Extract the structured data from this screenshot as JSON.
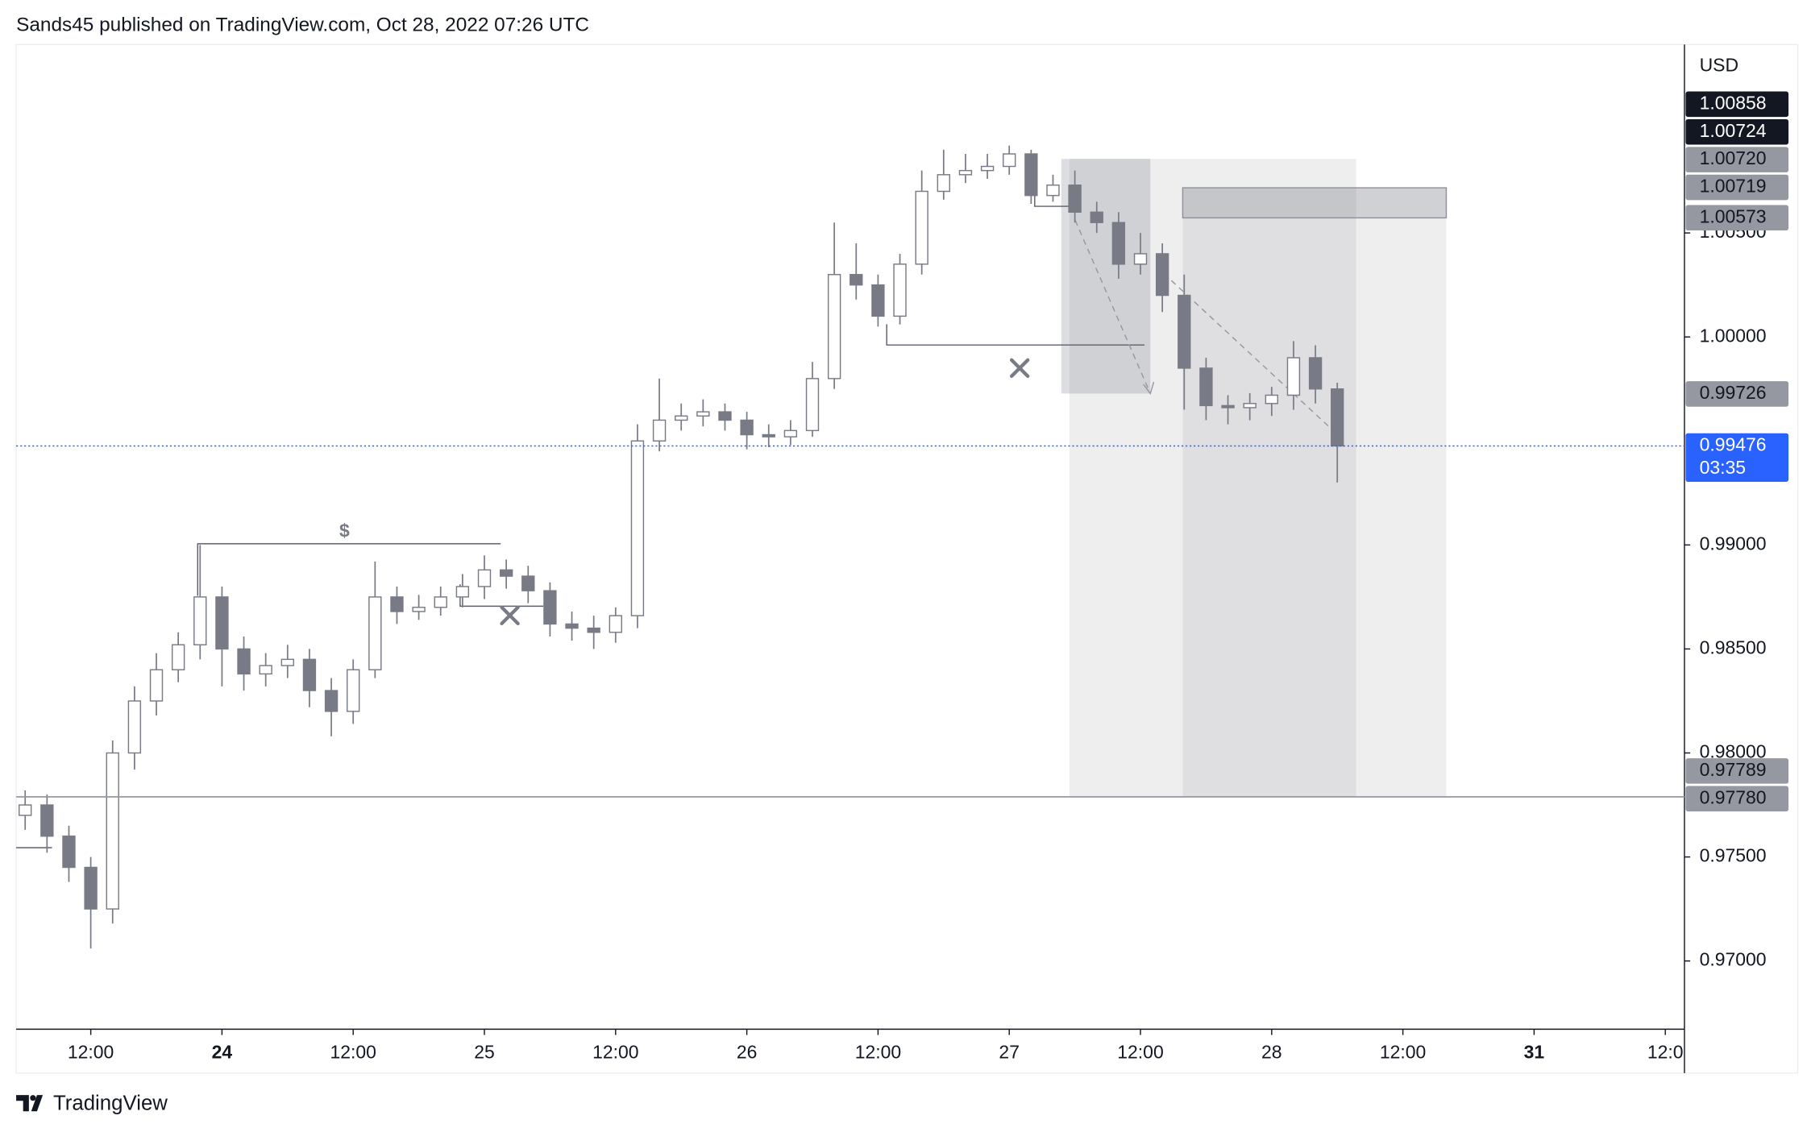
{
  "header": "Sands45 published on TradingView.com, Oct 28, 2022 07:26 UTC",
  "footer": "TradingView",
  "chart_data": {
    "type": "candlestick",
    "y_axis_label": "USD",
    "annotations": [
      "$"
    ],
    "up_color": "#ffffff",
    "down_color": "#787b86",
    "x": [
      -18,
      -16,
      -14,
      -12,
      -10,
      -8,
      -6,
      -4,
      -2,
      0,
      2,
      4,
      6,
      8,
      10,
      12,
      14,
      16,
      18,
      20,
      22,
      24,
      26,
      28,
      30,
      32,
      34,
      36,
      38,
      40,
      42,
      44,
      46,
      48,
      50,
      52,
      54,
      56,
      58,
      60,
      62,
      64,
      66,
      68,
      70,
      72,
      74,
      76,
      78,
      80,
      82,
      84,
      86,
      88,
      90,
      92,
      94,
      96,
      98,
      100,
      102
    ],
    "open": [
      0.977,
      0.9775,
      0.976,
      0.9745,
      0.9725,
      0.98,
      0.9825,
      0.984,
      0.9852,
      0.9875,
      0.985,
      0.9838,
      0.9842,
      0.9845,
      0.983,
      0.982,
      0.984,
      0.9875,
      0.9868,
      0.987,
      0.9875,
      0.988,
      0.9888,
      0.9885,
      0.9878,
      0.9862,
      0.986,
      0.9858,
      0.9866,
      0.995,
      0.996,
      0.9962,
      0.9964,
      0.996,
      0.9953,
      0.9952,
      0.9955,
      0.998,
      1.003,
      1.0025,
      1.001,
      1.0035,
      1.007,
      1.0078,
      1.008,
      1.0082,
      1.0088,
      1.0068,
      1.0073,
      1.006,
      1.0055,
      1.0035,
      1.004,
      1.002,
      0.9985,
      0.9967,
      0.9966,
      0.9968,
      0.9972,
      0.999,
      0.9975
    ],
    "high": [
      0.9782,
      0.978,
      0.9765,
      0.975,
      0.9806,
      0.9832,
      0.9848,
      0.9858,
      0.99,
      0.988,
      0.9856,
      0.9848,
      0.9852,
      0.985,
      0.9836,
      0.9845,
      0.9892,
      0.988,
      0.9876,
      0.988,
      0.9886,
      0.9895,
      0.9893,
      0.989,
      0.9882,
      0.9868,
      0.9866,
      0.987,
      0.9958,
      0.998,
      0.9968,
      0.997,
      0.9968,
      0.9964,
      0.9958,
      0.996,
      0.9988,
      1.0055,
      1.0045,
      1.003,
      1.004,
      1.008,
      1.009,
      1.0088,
      1.0088,
      1.0092,
      1.009,
      1.0078,
      1.008,
      1.0065,
      1.006,
      1.005,
      1.0045,
      1.003,
      0.999,
      0.9972,
      0.9973,
      0.9976,
      0.9998,
      0.9996,
      0.9978
    ],
    "low": [
      0.9763,
      0.9752,
      0.9738,
      0.9706,
      0.9718,
      0.9792,
      0.9818,
      0.9834,
      0.9845,
      0.9832,
      0.983,
      0.9832,
      0.9836,
      0.9822,
      0.9808,
      0.9814,
      0.9836,
      0.9862,
      0.9864,
      0.9866,
      0.987,
      0.9874,
      0.9879,
      0.9872,
      0.9856,
      0.9854,
      0.985,
      0.9853,
      0.986,
      0.9945,
      0.9955,
      0.9957,
      0.9955,
      0.9946,
      0.9947,
      0.9948,
      0.9952,
      0.9975,
      1.0018,
      1.0005,
      1.0006,
      1.003,
      1.0066,
      1.0074,
      1.0076,
      1.0078,
      1.0064,
      1.0065,
      1.0055,
      1.005,
      1.0028,
      1.003,
      1.0012,
      0.9965,
      0.996,
      0.9958,
      0.996,
      0.9962,
      0.9965,
      0.9968,
      0.993
    ],
    "close": [
      0.9775,
      0.976,
      0.9745,
      0.9725,
      0.98,
      0.9825,
      0.984,
      0.9852,
      0.9875,
      0.985,
      0.9838,
      0.9842,
      0.9845,
      0.983,
      0.982,
      0.984,
      0.9875,
      0.9868,
      0.987,
      0.9875,
      0.988,
      0.9888,
      0.9885,
      0.9878,
      0.9862,
      0.986,
      0.9858,
      0.9866,
      0.995,
      0.996,
      0.9962,
      0.9964,
      0.996,
      0.9953,
      0.9952,
      0.9955,
      0.998,
      1.003,
      1.0025,
      1.001,
      1.0035,
      1.007,
      1.0078,
      1.008,
      1.0082,
      1.0088,
      1.0068,
      1.0073,
      1.006,
      1.0055,
      1.0035,
      1.004,
      1.002,
      0.9985,
      0.9967,
      0.9966,
      0.9968,
      0.9972,
      0.999,
      0.9975,
      0.99476
    ],
    "xlim": [
      -18.82,
      133.75
    ],
    "ylim": [
      0.96672,
      1.01406
    ],
    "xticks": [
      {
        "value": -12,
        "label": "12:00"
      },
      {
        "value": 0,
        "label": "24",
        "bold": true
      },
      {
        "value": 12,
        "label": "12:00"
      },
      {
        "value": 24,
        "label": "25"
      },
      {
        "value": 36,
        "label": "12:00"
      },
      {
        "value": 48,
        "label": "26"
      },
      {
        "value": 60,
        "label": "12:00"
      },
      {
        "value": 72,
        "label": "27"
      },
      {
        "value": 84,
        "label": "12:00"
      },
      {
        "value": 96,
        "label": "28"
      },
      {
        "value": 108,
        "label": "12:00"
      },
      {
        "value": 120,
        "label": "31",
        "bold": true
      },
      {
        "value": 132,
        "label": "12:0"
      }
    ],
    "yticks": [
      {
        "value": 0.97,
        "label": "0.97000"
      },
      {
        "value": 0.975,
        "label": "0.97500"
      },
      {
        "value": 0.98,
        "label": "0.98000"
      },
      {
        "value": 0.985,
        "label": "0.98500"
      },
      {
        "value": 0.99,
        "label": "0.99000"
      },
      {
        "value": 1,
        "label": "1.00000"
      },
      {
        "value": 1.005,
        "label": "1.00500"
      }
    ],
    "price_labels": [
      {
        "value": 1.00858,
        "label": "1.00858",
        "color": "#131722"
      },
      {
        "value": 1.00724,
        "label": "1.00724",
        "color": "#131722"
      },
      {
        "value": 1.0072,
        "label": "1.00720",
        "color": "#9598a1"
      },
      {
        "value": 1.00719,
        "label": "1.00719",
        "color": "#9598a1"
      },
      {
        "value": 1.00573,
        "label": "1.00573",
        "color": "#9598a1"
      },
      {
        "value": 0.99726,
        "label": "0.99726",
        "color": "#9598a1"
      },
      {
        "value": 0.99476,
        "label": "0.99476",
        "color": "#2962ff",
        "timer": "03:35"
      },
      {
        "value": 0.97789,
        "label": "0.97789",
        "color": "#9598a1",
        "line": true
      },
      {
        "value": 0.9778,
        "label": "0.97780",
        "color": "#9598a1"
      }
    ]
  }
}
